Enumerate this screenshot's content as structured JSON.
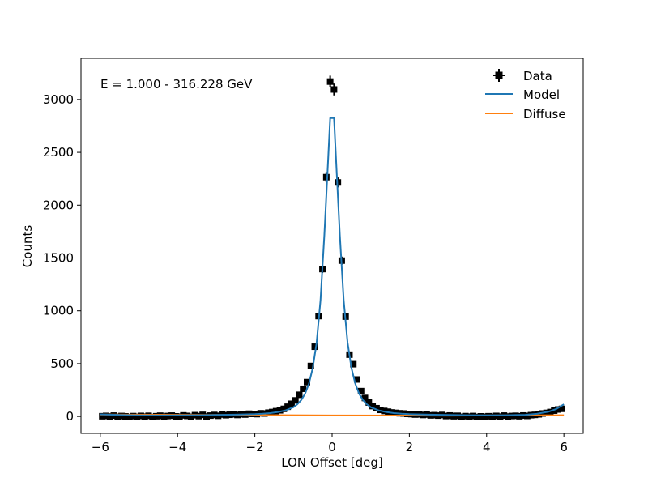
{
  "chart_data": {
    "type": "line",
    "annotation": "E = 1.000 - 316.228 GeV",
    "xlabel": "LON Offset [deg]",
    "ylabel": "Counts",
    "xlim": [
      -6.5,
      6.5
    ],
    "ylim": [
      -160,
      3390
    ],
    "xticks": [
      -6,
      -4,
      -2,
      0,
      2,
      4,
      6
    ],
    "yticks": [
      0,
      500,
      1000,
      1500,
      2000,
      2500,
      3000
    ],
    "xtick_labels": [
      "−6",
      "−4",
      "−2",
      "0",
      "2",
      "4",
      "6"
    ],
    "ytick_labels": [
      "0",
      "500",
      "1000",
      "1500",
      "2000",
      "2500",
      "3000"
    ],
    "legend": {
      "position": "top-right",
      "entries": [
        "Data",
        "Model",
        "Diffuse"
      ]
    },
    "grid": false,
    "colors": {
      "data": "#000000",
      "model": "#1f77b4",
      "diffuse": "#ff7f0e"
    },
    "series": [
      {
        "name": "Data",
        "kind": "errorbar",
        "x": [
          -5.95,
          -5.85,
          -5.75,
          -5.65,
          -5.55,
          -5.45,
          -5.35,
          -5.25,
          -5.15,
          -5.05,
          -4.95,
          -4.85,
          -4.75,
          -4.65,
          -4.55,
          -4.45,
          -4.35,
          -4.25,
          -4.15,
          -4.05,
          -3.95,
          -3.85,
          -3.75,
          -3.65,
          -3.55,
          -3.45,
          -3.35,
          -3.25,
          -3.15,
          -3.05,
          -2.95,
          -2.85,
          -2.75,
          -2.65,
          -2.55,
          -2.45,
          -2.35,
          -2.25,
          -2.15,
          -2.05,
          -1.95,
          -1.85,
          -1.75,
          -1.65,
          -1.55,
          -1.45,
          -1.35,
          -1.25,
          -1.15,
          -1.05,
          -0.95,
          -0.85,
          -0.75,
          -0.65,
          -0.55,
          -0.45,
          -0.35,
          -0.25,
          -0.15,
          -0.05,
          0.05,
          0.15,
          0.25,
          0.35,
          0.45,
          0.55,
          0.65,
          0.75,
          0.85,
          0.95,
          1.05,
          1.15,
          1.25,
          1.35,
          1.45,
          1.55,
          1.65,
          1.75,
          1.85,
          1.95,
          2.05,
          2.15,
          2.25,
          2.35,
          2.45,
          2.55,
          2.65,
          2.75,
          2.85,
          2.95,
          3.05,
          3.15,
          3.25,
          3.35,
          3.45,
          3.55,
          3.65,
          3.75,
          3.85,
          3.95,
          4.05,
          4.15,
          4.25,
          4.35,
          4.45,
          4.55,
          4.65,
          4.75,
          4.85,
          4.95,
          5.05,
          5.15,
          5.25,
          5.35,
          5.45,
          5.55,
          5.65,
          5.75,
          5.85,
          5.95
        ],
        "y": [
          2,
          5,
          0,
          8,
          -3,
          4,
          1,
          -6,
          3,
          -4,
          5,
          -2,
          6,
          -5,
          2,
          7,
          -3,
          4,
          8,
          1,
          -2,
          10,
          5,
          -4,
          12,
          3,
          15,
          -1,
          8,
          14,
          6,
          18,
          12,
          16,
          20,
          14,
          22,
          18,
          26,
          24,
          22,
          30,
          28,
          36,
          42,
          50,
          58,
          72,
          92,
          120,
          152,
          205,
          262,
          325,
          478,
          660,
          950,
          1395,
          2265,
          3170,
          3095,
          2215,
          1475,
          945,
          585,
          495,
          350,
          240,
          175,
          132,
          98,
          78,
          62,
          52,
          45,
          38,
          34,
          30,
          28,
          24,
          22,
          18,
          20,
          14,
          18,
          10,
          12,
          8,
          14,
          4,
          9,
          2,
          6,
          -4,
          3,
          -2,
          4,
          -5,
          1,
          -3,
          2,
          -4,
          5,
          -2,
          8,
          -1,
          4,
          6,
          2,
          9,
          5,
          12,
          15,
          20,
          28,
          34,
          42,
          55,
          66,
          72
        ],
        "yerr": [
          6,
          6,
          6,
          6,
          6,
          6,
          6,
          6,
          6,
          6,
          6,
          6,
          6,
          6,
          6,
          6,
          6,
          6,
          6,
          6,
          6,
          6,
          6,
          6,
          6,
          6,
          6,
          6,
          6,
          6,
          6,
          6,
          6,
          6,
          6,
          6,
          6,
          6,
          6,
          6,
          6,
          6,
          6,
          6,
          7,
          7,
          8,
          9,
          10,
          11,
          12,
          14,
          16,
          18,
          22,
          26,
          31,
          37,
          48,
          56,
          56,
          47,
          38,
          31,
          24,
          22,
          19,
          15,
          13,
          12,
          10,
          9,
          8,
          7,
          7,
          6,
          6,
          6,
          6,
          6,
          6,
          6,
          6,
          6,
          6,
          6,
          6,
          6,
          6,
          6,
          6,
          6,
          6,
          6,
          6,
          6,
          6,
          6,
          6,
          6,
          6,
          6,
          6,
          6,
          6,
          6,
          6,
          6,
          6,
          6,
          6,
          6,
          6,
          6,
          6,
          6,
          6,
          7,
          8,
          9
        ],
        "xerr": 0.05
      },
      {
        "name": "Model",
        "kind": "line",
        "x": [
          -6,
          -5.5,
          -5,
          -4.5,
          -4,
          -3.5,
          -3,
          -2.5,
          -2,
          -1.8,
          -1.6,
          -1.4,
          -1.2,
          -1.0,
          -0.9,
          -0.8,
          -0.7,
          -0.6,
          -0.5,
          -0.4,
          -0.3,
          -0.2,
          -0.1,
          -0.05,
          0.05,
          0.1,
          0.2,
          0.3,
          0.4,
          0.5,
          0.6,
          0.7,
          0.8,
          0.9,
          1.0,
          1.2,
          1.4,
          1.6,
          1.8,
          2.0,
          2.5,
          3.0,
          3.5,
          4.0,
          4.5,
          5.0,
          5.3,
          5.6,
          5.8,
          6.0
        ],
        "y": [
          20,
          14,
          11,
          10,
          11,
          12,
          14,
          17,
          22,
          26,
          32,
          42,
          58,
          88,
          115,
          155,
          215,
          310,
          460,
          700,
          1100,
          1720,
          2450,
          2825,
          2825,
          2450,
          1720,
          1100,
          700,
          460,
          310,
          215,
          155,
          115,
          88,
          58,
          42,
          32,
          26,
          22,
          17,
          14,
          12,
          11,
          12,
          15,
          25,
          45,
          70,
          115
        ]
      },
      {
        "name": "Diffuse",
        "kind": "line",
        "x": [
          -6,
          -3,
          0,
          3,
          6
        ],
        "y": [
          18,
          14,
          10,
          8,
          12
        ]
      }
    ]
  }
}
